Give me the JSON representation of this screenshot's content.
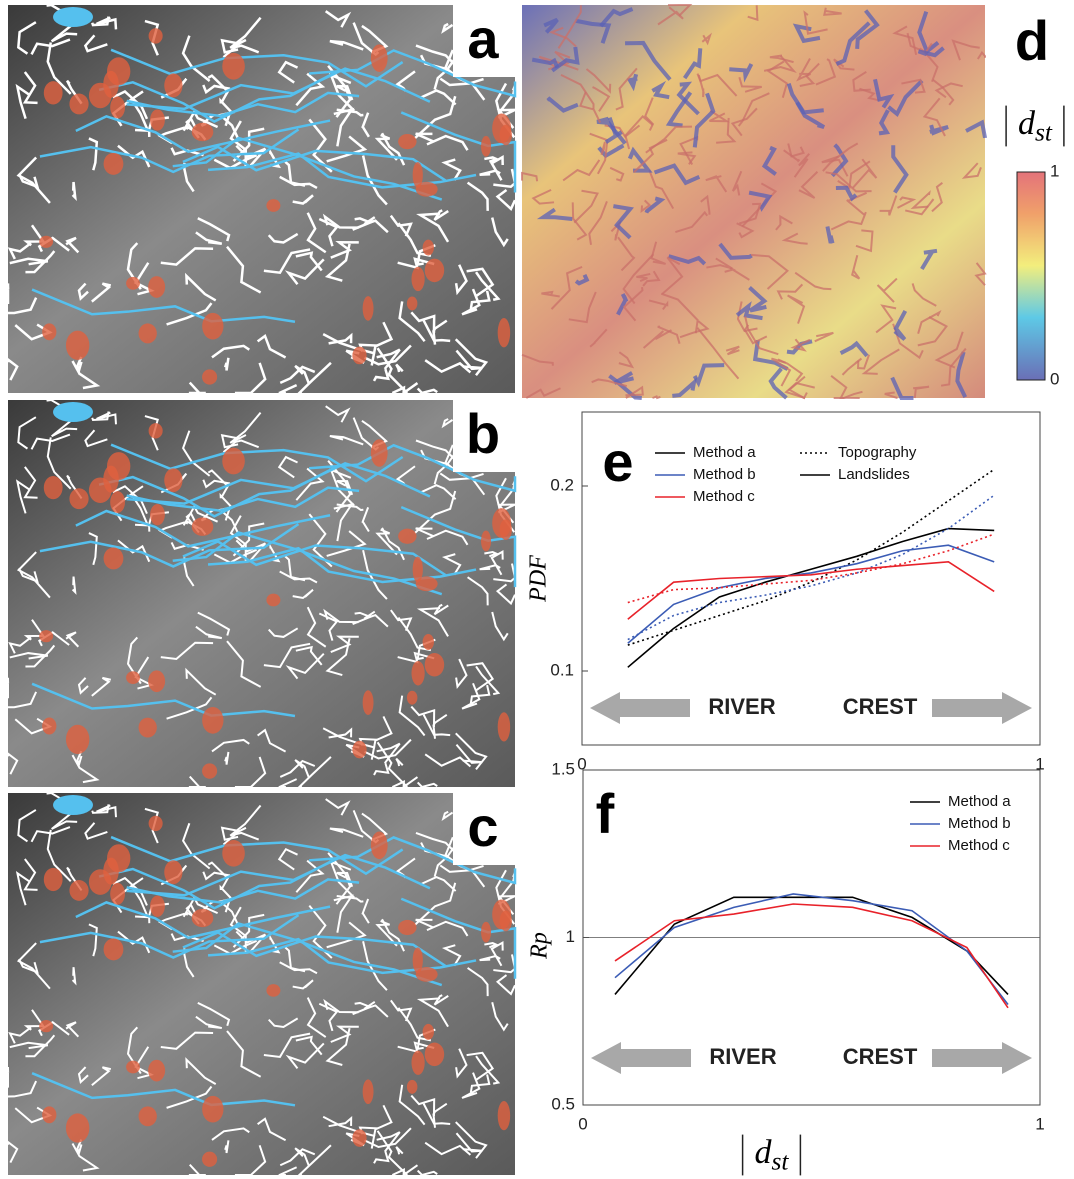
{
  "panel_labels": [
    "a",
    "b",
    "c",
    "d"
  ],
  "colorbar": {
    "symbol": "d",
    "subscript": "st",
    "ticks": [
      1,
      0
    ]
  },
  "chart_data": [
    {
      "type": "line",
      "title": "e",
      "ylabel": "PDF",
      "x": [
        0.1,
        0.2,
        0.3,
        0.4,
        0.5,
        0.6,
        0.7,
        0.8,
        0.9
      ],
      "xlim": [
        0,
        1
      ],
      "xticks": [
        0,
        1
      ],
      "ylim": [
        0.06,
        0.24
      ],
      "yticks": [
        0.1,
        0.2
      ],
      "legend_styles": [
        {
          "label": "Topography",
          "dash": "dotted"
        },
        {
          "label": "Landslides",
          "dash": "solid"
        }
      ],
      "series": [
        {
          "name": "Method a",
          "color": "#000000",
          "values_by_style": [
            [
              0.114,
              0.122,
              0.13,
              0.138,
              0.148,
              0.16,
              0.175,
              0.192,
              0.209
            ],
            [
              0.102,
              0.123,
              0.14,
              0.148,
              0.155,
              0.162,
              0.17,
              0.177,
              0.176
            ]
          ]
        },
        {
          "name": "Method b",
          "color": "#3b5cb5",
          "values_by_style": [
            [
              0.117,
              0.13,
              0.137,
              0.141,
              0.146,
              0.153,
              0.163,
              0.177,
              0.195
            ],
            [
              0.115,
              0.136,
              0.145,
              0.15,
              0.153,
              0.158,
              0.165,
              0.168,
              0.159
            ]
          ]
        },
        {
          "name": "Method c",
          "color": "#e8222a",
          "values_by_style": [
            [
              0.137,
              0.144,
              0.145,
              0.147,
              0.149,
              0.153,
              0.158,
              0.165,
              0.174
            ],
            [
              0.128,
              0.148,
              0.15,
              0.151,
              0.152,
              0.155,
              0.157,
              0.159,
              0.143
            ]
          ]
        }
      ],
      "annotations": [
        "RIVER",
        "CREST"
      ]
    },
    {
      "type": "line",
      "title": "f",
      "ylabel": "Rp",
      "xlabel": {
        "symbol": "d",
        "subscript": "st"
      },
      "x": [
        0.07,
        0.2,
        0.33,
        0.46,
        0.59,
        0.72,
        0.84,
        0.93
      ],
      "xlim": [
        0,
        1
      ],
      "xticks": [
        0,
        1
      ],
      "ylim": [
        0.5,
        1.5
      ],
      "yticks": [
        0.5,
        1,
        1.5
      ],
      "reference_y": 1,
      "series": [
        {
          "name": "Method a",
          "color": "#000000",
          "values": [
            0.83,
            1.04,
            1.12,
            1.12,
            1.12,
            1.06,
            0.96,
            0.83
          ]
        },
        {
          "name": "Method b",
          "color": "#3b5cb5",
          "values": [
            0.88,
            1.03,
            1.09,
            1.13,
            1.11,
            1.08,
            0.96,
            0.8
          ]
        },
        {
          "name": "Method c",
          "color": "#e8222a",
          "values": [
            0.93,
            1.05,
            1.07,
            1.1,
            1.09,
            1.05,
            0.97,
            0.79
          ]
        }
      ],
      "annotations": [
        "RIVER",
        "CREST"
      ]
    }
  ]
}
